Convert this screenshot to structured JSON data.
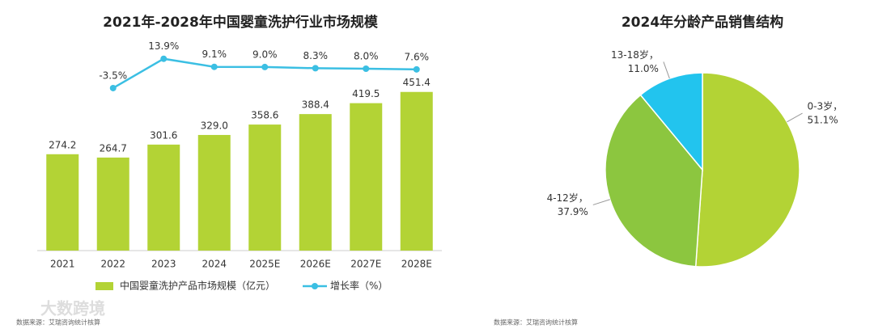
{
  "chart_data": [
    {
      "type": "bar_line",
      "title": "2021年-2028年中国婴童洗护行业市场规模",
      "categories": [
        "2021",
        "2022",
        "2023",
        "2024",
        "2025E",
        "2026E",
        "2027E",
        "2028E"
      ],
      "series": [
        {
          "name": "中国婴童洗护产品市场规模（亿元）",
          "color": "#b3d335",
          "type": "bar",
          "values": [
            274.2,
            264.7,
            301.6,
            329.0,
            358.6,
            388.4,
            419.5,
            451.4
          ],
          "value_labels": [
            "274.2",
            "264.7",
            "301.6",
            "329.0",
            "358.6",
            "388.4",
            "419.5",
            "451.4"
          ]
        },
        {
          "name": "增长率（%）",
          "color": "#3bbfe3",
          "type": "line",
          "axis": "y2",
          "values": [
            null,
            -3.5,
            13.9,
            9.1,
            9.0,
            8.3,
            8.0,
            7.6
          ],
          "value_labels": [
            null,
            "-3.5%",
            "13.9%",
            "9.1%",
            "9.0%",
            "8.3%",
            "8.0%",
            "7.6%"
          ]
        }
      ],
      "ylim": [
        0,
        575
      ],
      "y2lim": [
        -100,
        20
      ],
      "legend": "bottom",
      "source": "数据来源：艾瑞咨询统计核算"
    },
    {
      "type": "pie",
      "title": "2024年分龄产品销售结构",
      "categories": [
        "0-3岁，",
        "4-12岁，",
        "13-18岁，"
      ],
      "values": [
        51.1,
        37.9,
        11.0
      ],
      "value_labels": [
        "51.1%",
        "37.9%",
        "11.0%"
      ],
      "colors": [
        "#b3d335",
        "#8cc63f",
        "#22c4ee"
      ],
      "source": "数据来源：艾瑞咨询统计核算"
    }
  ],
  "watermark": "大数跨境"
}
